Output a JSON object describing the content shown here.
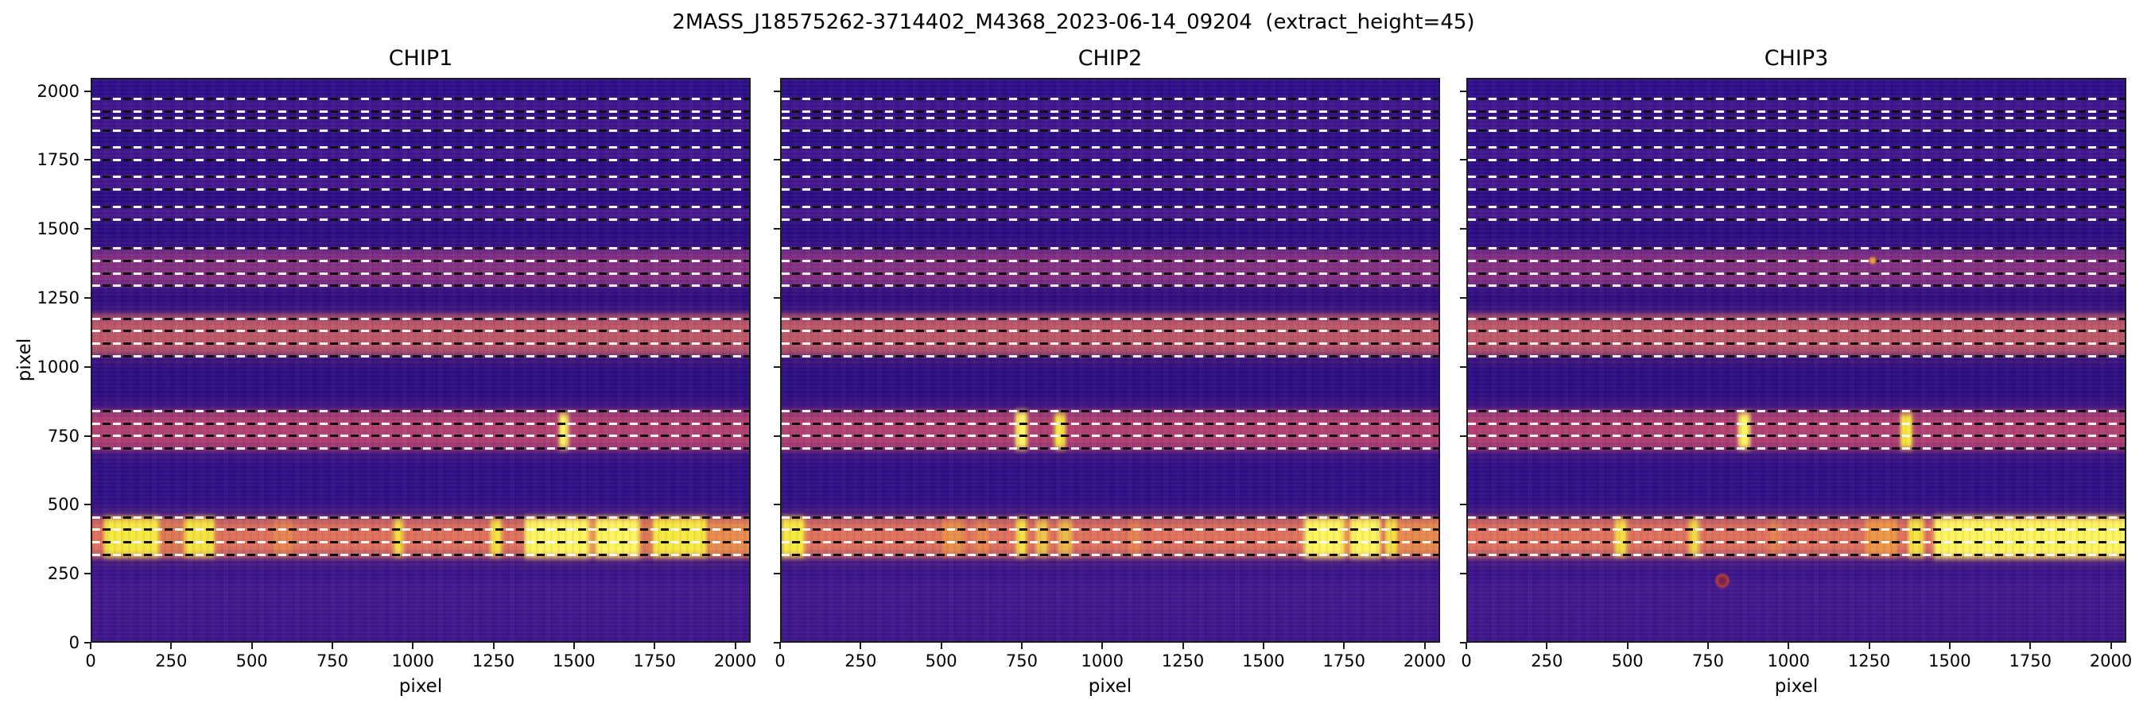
{
  "page": {
    "title": "2MASS_J18575262-3714402_M4368_2023-06-14_09204  (extract_height=45)"
  },
  "chart_data": {
    "type": "heatmap",
    "title": "2MASS_J18575262-3714402_M4368_2023-06-14_09204  (extract_height=45)",
    "panels": [
      "CHIP1",
      "CHIP2",
      "CHIP3"
    ],
    "xlabel": "pixel",
    "ylabel": "pixel",
    "xlim": [
      0,
      2048
    ],
    "ylim": [
      0,
      2048
    ],
    "xticks": [
      0,
      250,
      500,
      750,
      1000,
      1250,
      1500,
      1750,
      2000
    ],
    "yticks": [
      0,
      250,
      500,
      750,
      1000,
      1250,
      1500,
      1750,
      2000
    ],
    "colormap": "plasma",
    "colors": {
      "background": "#2d0d85",
      "yellow": "#f7e93f",
      "yellow_sat": "#fdf55f",
      "orange": "#f09c42",
      "dim_orange": "#dd7a50",
      "dash_white": "#f6f6f6",
      "dash_black": "#101010"
    },
    "extraction": {
      "extract_height": 45,
      "dashed_lines_y": [
        325,
        370,
        415,
        460,
        710,
        755,
        800,
        845,
        1045,
        1090,
        1135,
        1180,
        1300,
        1345,
        1390,
        1435,
        1540,
        1585,
        1650,
        1695,
        1757,
        1802,
        1862,
        1907,
        1932,
        1977
      ]
    },
    "bands": [
      {
        "name": "order-1-bright",
        "y": [
          298,
          478
        ],
        "color": "#e0705c",
        "alpha": 1
      },
      {
        "name": "order-2",
        "y": [
          686,
          866
        ],
        "color": "#b84270",
        "alpha": 0.95
      },
      {
        "name": "order-3",
        "y": [
          1030,
          1215
        ],
        "color": "#cd5f64",
        "alpha": 0.9
      },
      {
        "name": "order-4",
        "y": [
          1282,
          1448
        ],
        "color": "#a23c82",
        "alpha": 0.75
      },
      {
        "name": "order-5-faint",
        "y": [
          1528,
          1600
        ],
        "color": "#5d2398",
        "alpha": 0.5
      },
      {
        "name": "order-6-faint",
        "y": [
          1638,
          1710
        ],
        "color": "#5d2398",
        "alpha": 0.45
      },
      {
        "name": "order-7-faint",
        "y": [
          1745,
          1815
        ],
        "color": "#5d2398",
        "alpha": 0.4
      },
      {
        "name": "order-8-faint",
        "y": [
          1850,
          1918
        ],
        "color": "#5d2398",
        "alpha": 0.38
      },
      {
        "name": "order-9-faint",
        "y": [
          1922,
          1988
        ],
        "color": "#5d2398",
        "alpha": 0.35
      }
    ],
    "features": {
      "CHIP1": [
        {
          "x": [
            36,
            210
          ],
          "y": [
            302,
            474
          ],
          "c": "yellow",
          "a": 1
        },
        {
          "x": [
            210,
            288
          ],
          "y": [
            306,
            470
          ],
          "c": "dim_orange",
          "a": 0.7
        },
        {
          "x": [
            286,
            380
          ],
          "y": [
            302,
            474
          ],
          "c": "yellow",
          "a": 0.95
        },
        {
          "x": [
            560,
            625
          ],
          "y": [
            310,
            465
          ],
          "c": "orange",
          "a": 0.45
        },
        {
          "x": [
            936,
            964
          ],
          "y": [
            305,
            470
          ],
          "c": "yellow",
          "a": 0.9
        },
        {
          "x": [
            1236,
            1270
          ],
          "y": [
            305,
            470
          ],
          "c": "yellow",
          "a": 0.95
        },
        {
          "x": [
            1342,
            1545
          ],
          "y": [
            300,
            476
          ],
          "c": "yellow_sat",
          "a": 1
        },
        {
          "x": [
            1545,
            1562
          ],
          "y": [
            305,
            470
          ],
          "c": "orange",
          "a": 0.8
        },
        {
          "x": [
            1562,
            1700
          ],
          "y": [
            300,
            476
          ],
          "c": "yellow_sat",
          "a": 1
        },
        {
          "x": [
            1700,
            1740
          ],
          "y": [
            306,
            468
          ],
          "c": "dim_orange",
          "a": 0.7
        },
        {
          "x": [
            1740,
            1908
          ],
          "y": [
            302,
            474
          ],
          "c": "yellow",
          "a": 1
        },
        {
          "x": [
            1908,
            2048
          ],
          "y": [
            306,
            468
          ],
          "c": "orange",
          "a": 0.6
        },
        {
          "x": [
            1448,
            1478
          ],
          "y": [
            695,
            852
          ],
          "c": "yellow_sat",
          "a": 1
        }
      ],
      "CHIP2": [
        {
          "x": [
            0,
            72
          ],
          "y": [
            302,
            474
          ],
          "c": "yellow",
          "a": 1
        },
        {
          "x": [
            498,
            566
          ],
          "y": [
            308,
            466
          ],
          "c": "orange",
          "a": 0.7
        },
        {
          "x": [
            600,
            642
          ],
          "y": [
            310,
            462
          ],
          "c": "orange",
          "a": 0.5
        },
        {
          "x": [
            728,
            760
          ],
          "y": [
            303,
            472
          ],
          "c": "yellow",
          "a": 0.95
        },
        {
          "x": [
            790,
            826
          ],
          "y": [
            306,
            468
          ],
          "c": "yellow",
          "a": 0.7
        },
        {
          "x": [
            858,
            900
          ],
          "y": [
            306,
            468
          ],
          "c": "yellow",
          "a": 0.6
        },
        {
          "x": [
            1078,
            1112
          ],
          "y": [
            310,
            462
          ],
          "c": "orange",
          "a": 0.45
        },
        {
          "x": [
            1620,
            1748
          ],
          "y": [
            300,
            476
          ],
          "c": "yellow_sat",
          "a": 1
        },
        {
          "x": [
            1748,
            1764
          ],
          "y": [
            306,
            468
          ],
          "c": "orange",
          "a": 0.8
        },
        {
          "x": [
            1764,
            1858
          ],
          "y": [
            300,
            476
          ],
          "c": "yellow_sat",
          "a": 1
        },
        {
          "x": [
            1872,
            1912
          ],
          "y": [
            303,
            472
          ],
          "c": "yellow",
          "a": 0.9
        },
        {
          "x": [
            1912,
            2048
          ],
          "y": [
            308,
            466
          ],
          "c": "orange",
          "a": 0.55
        },
        {
          "x": [
            726,
            762
          ],
          "y": [
            692,
            862
          ],
          "c": "yellow_sat",
          "a": 1
        },
        {
          "x": [
            846,
            880
          ],
          "y": [
            695,
            852
          ],
          "c": "yellow",
          "a": 1
        }
      ],
      "CHIP3": [
        {
          "x": [
            456,
            494
          ],
          "y": [
            305,
            470
          ],
          "c": "yellow",
          "a": 0.9
        },
        {
          "x": [
            686,
            718
          ],
          "y": [
            305,
            470
          ],
          "c": "yellow",
          "a": 0.85
        },
        {
          "x": [
            934,
            968
          ],
          "y": [
            310,
            462
          ],
          "c": "orange",
          "a": 0.45
        },
        {
          "x": [
            1234,
            1332
          ],
          "y": [
            305,
            470
          ],
          "c": "orange",
          "a": 0.85
        },
        {
          "x": [
            1366,
            1414
          ],
          "y": [
            303,
            472
          ],
          "c": "yellow",
          "a": 0.95
        },
        {
          "x": [
            1446,
            2048
          ],
          "y": [
            298,
            478
          ],
          "c": "yellow_sat",
          "a": 1
        },
        {
          "x": [
            840,
            876
          ],
          "y": [
            695,
            856
          ],
          "c": "yellow_sat",
          "a": 1
        },
        {
          "x": [
            1342,
            1380
          ],
          "y": [
            695,
            852
          ],
          "c": "yellow",
          "a": 1
        }
      ]
    },
    "spots": [
      {
        "panel": "CHIP3",
        "x": 790,
        "y": 230,
        "r": 9,
        "core": "#7e2148",
        "halo": "#c84b36"
      },
      {
        "panel": "CHIP3",
        "x": 1256,
        "y": 1392,
        "r": 5,
        "core": "#e8a545",
        "halo": "#cf7a33"
      }
    ]
  }
}
